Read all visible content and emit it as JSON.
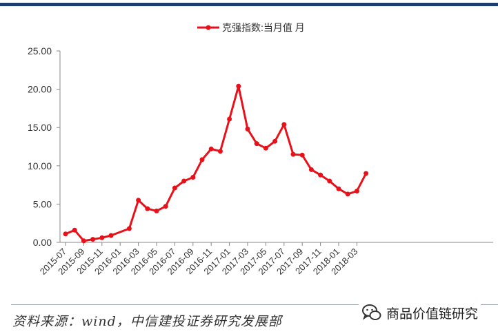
{
  "chart_data": {
    "type": "line",
    "title": "",
    "legend": "top-center",
    "grid": false,
    "xlabel": "",
    "ylabel": "",
    "ylim": [
      0,
      25
    ],
    "yticks": [
      "0.00",
      "5.00",
      "10.00",
      "15.00",
      "20.00",
      "25.00"
    ],
    "xtick_labels": [
      "2015-07",
      "2015-09",
      "2015-11",
      "2016-01",
      "2016-03",
      "2016-05",
      "2016-07",
      "2016-09",
      "2016-11",
      "2017-01",
      "2017-03",
      "2017-05",
      "2017-07",
      "2017-09",
      "2017-11",
      "2018-01",
      "2018-03"
    ],
    "color": "#e8111a",
    "series": [
      {
        "name": "克强指数:当月值 月",
        "x": [
          "2015-07",
          "2015-08",
          "2015-09",
          "2015-10",
          "2015-11",
          "2015-12",
          "2016-02",
          "2016-03",
          "2016-04",
          "2016-05",
          "2016-06",
          "2016-07",
          "2016-08",
          "2016-09",
          "2016-10",
          "2016-11",
          "2016-12",
          "2017-01",
          "2017-02",
          "2017-03",
          "2017-04",
          "2017-05",
          "2017-06",
          "2017-07",
          "2017-08",
          "2017-09",
          "2017-10",
          "2017-11",
          "2017-12",
          "2018-01",
          "2018-02",
          "2018-03",
          "2018-04"
        ],
        "values": [
          1.1,
          1.6,
          0.2,
          0.4,
          0.6,
          0.9,
          1.8,
          5.5,
          4.4,
          4.1,
          4.7,
          7.1,
          8.0,
          8.5,
          10.8,
          12.2,
          11.9,
          16.1,
          20.4,
          14.8,
          12.9,
          12.3,
          13.2,
          15.4,
          11.5,
          11.4,
          9.5,
          8.8,
          8.0,
          7.0,
          6.3,
          6.7,
          9.0
        ]
      }
    ]
  },
  "footer": {
    "source_text": "资料来源：wind，中信建投证券研究发展部",
    "watermark_text": "商品价值链研究",
    "watermark_icon": "wechat-icon"
  }
}
